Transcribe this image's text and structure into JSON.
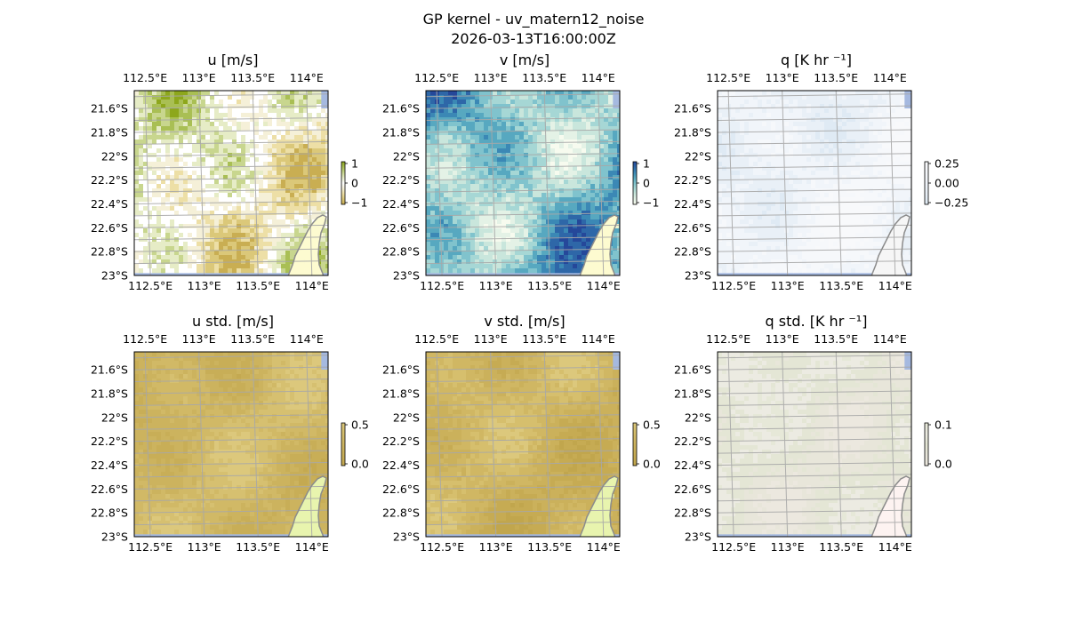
{
  "figure": {
    "suptitle_line1": "GP kernel - uv_matern12_noise",
    "suptitle_line2": "2026-03-13T16:00:00Z"
  },
  "map_axes": {
    "lon_ticks": [
      "112.5°E",
      "113°E",
      "113.5°E",
      "114°E"
    ],
    "lat_ticks": [
      "21.6°S",
      "21.8°S",
      "22°S",
      "22.2°S",
      "22.4°S",
      "22.6°S",
      "22.8°S",
      "23°S"
    ],
    "lon_values": [
      112.5,
      113.0,
      113.5,
      114.0
    ],
    "lat_values": [
      -21.6,
      -21.8,
      -22.0,
      -22.2,
      -22.4,
      -22.6,
      -22.8,
      -23.0
    ],
    "extent": {
      "lon": [
        112.4,
        114.2
      ],
      "lat": [
        -23.0,
        -21.45
      ]
    },
    "gridlines": true,
    "coastline_color": "#8c8c8c",
    "ocean_color": "#a5b9e0"
  },
  "panels": [
    {
      "key": "u",
      "title": "u [m/s]",
      "colormap": "brown-white-green",
      "land_color": "#fdfbd0",
      "colorbar": {
        "ticks": [
          "1",
          "0",
          "−1"
        ],
        "range": [
          -1,
          1
        ]
      },
      "palette": [
        "#c9ae52",
        "#dbc879",
        "#eddfa6",
        "#f5f0d8",
        "#ffffff",
        "#e6ecc6",
        "#c8d68e",
        "#a9bf54",
        "#8da71c"
      ]
    },
    {
      "key": "v",
      "title": "v [m/s]",
      "colormap": "white-teal-blue",
      "land_color": "#fdfbd0",
      "colorbar": {
        "ticks": [
          "1",
          "0",
          "−1"
        ],
        "range": [
          -1,
          1
        ]
      },
      "palette": [
        "#f7fbef",
        "#e4f2e6",
        "#c9e6dc",
        "#a6d7d5",
        "#80c3cd",
        "#57a8c0",
        "#3b88b5",
        "#2e67a8",
        "#25489a"
      ]
    },
    {
      "key": "q",
      "title": "q [K hr ⁻¹]",
      "colormap": "blue-white-red",
      "land_color": "#f6f6f6",
      "colorbar": {
        "ticks": [
          "0.25",
          "0.00",
          "−0.25"
        ],
        "range": [
          -0.3,
          0.3
        ]
      },
      "palette": [
        "#dfeaf4",
        "#e9f0f7",
        "#f1f5fa",
        "#f6f8fb",
        "#f8f9fb"
      ]
    },
    {
      "key": "u_std",
      "title": "u std. [m/s]",
      "colormap": "tan-yellow",
      "land_color": "#e8f4ae",
      "colorbar": {
        "ticks": [
          "0.5",
          "0.0"
        ],
        "range": [
          0,
          0.5
        ]
      },
      "palette": [
        "#c4a951",
        "#c8ae57",
        "#ccb35e",
        "#d1b966",
        "#d6c070",
        "#dcc87c"
      ]
    },
    {
      "key": "v_std",
      "title": "v std. [m/s]",
      "colormap": "tan-yellow",
      "land_color": "#e8f4ae",
      "colorbar": {
        "ticks": [
          "0.5",
          "0.0"
        ],
        "range": [
          0,
          0.5
        ]
      },
      "palette": [
        "#c1a64d",
        "#c6ab53",
        "#cbb15b",
        "#d0b763",
        "#d6bf6d",
        "#dcc87c"
      ]
    },
    {
      "key": "q_std",
      "title": "q std. [K hr ⁻¹]",
      "colormap": "grey-green",
      "land_color": "#fdf3f1",
      "colorbar": {
        "ticks": [
          "0.1",
          "0.0"
        ],
        "range": [
          0,
          0.1
        ]
      },
      "palette": [
        "#ece8df",
        "#e8e6da",
        "#e4e6d5",
        "#ecebe2",
        "#e6e8d8"
      ]
    }
  ]
}
